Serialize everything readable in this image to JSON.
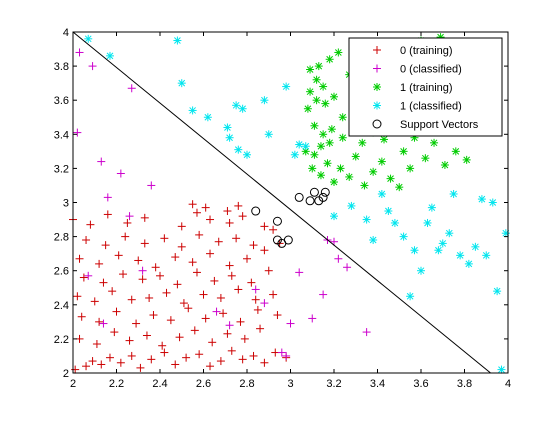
{
  "chart_data": {
    "type": "scatter",
    "title": "",
    "xlabel": "",
    "ylabel": "",
    "xlim": [
      2,
      4
    ],
    "ylim": [
      2,
      4
    ],
    "xticks": [
      "2",
      "2.2",
      "2.4",
      "2.6",
      "2.8",
      "3",
      "3.2",
      "3.4",
      "3.6",
      "3.8",
      "4"
    ],
    "yticks": [
      "2",
      "2.2",
      "2.4",
      "2.6",
      "2.8",
      "3",
      "3.2",
      "3.4",
      "3.6",
      "3.8",
      "4"
    ],
    "grid": false,
    "legend_position": "top-right",
    "boundary": {
      "x": [
        2.0,
        3.92
      ],
      "y": [
        4.0,
        2.0
      ]
    },
    "series": [
      {
        "name": "0 (training)",
        "marker": "+",
        "color": "#cc0000",
        "x": [
          2.01,
          2.06,
          2.09,
          2.13,
          2.17,
          2.22,
          2.27,
          2.31,
          2.36,
          2.42,
          2.47,
          2.52,
          2.58,
          2.63,
          2.68,
          2.73,
          2.78,
          2.83,
          2.88,
          2.93,
          2.98,
          2.03,
          2.11,
          2.19,
          2.26,
          2.34,
          2.41,
          2.49,
          2.56,
          2.64,
          2.71,
          2.79,
          2.86,
          2.04,
          2.12,
          2.2,
          2.29,
          2.37,
          2.45,
          2.53,
          2.61,
          2.69,
          2.77,
          2.85,
          2.94,
          2.02,
          2.1,
          2.18,
          2.27,
          2.35,
          2.43,
          2.51,
          2.6,
          2.68,
          2.76,
          2.84,
          2.92,
          2.05,
          2.14,
          2.23,
          2.32,
          2.4,
          2.48,
          2.57,
          2.65,
          2.73,
          2.82,
          2.9,
          2.03,
          2.12,
          2.21,
          2.3,
          2.38,
          2.47,
          2.55,
          2.63,
          2.72,
          2.8,
          2.88,
          2.06,
          2.15,
          2.24,
          2.33,
          2.42,
          2.5,
          2.58,
          2.67,
          2.75,
          2.83,
          2.0,
          2.08,
          2.16,
          2.25,
          2.33,
          2.5,
          2.57,
          2.63,
          2.72,
          2.78,
          2.88,
          2.55,
          2.61,
          2.71,
          2.76,
          2.92,
          2.95
        ],
        "y": [
          2.02,
          2.04,
          2.07,
          2.05,
          2.09,
          2.06,
          2.1,
          2.03,
          2.08,
          2.12,
          2.05,
          2.09,
          2.11,
          2.04,
          2.07,
          2.13,
          2.08,
          2.1,
          2.06,
          2.12,
          2.09,
          2.2,
          2.17,
          2.24,
          2.19,
          2.22,
          2.16,
          2.21,
          2.25,
          2.18,
          2.23,
          2.2,
          2.26,
          2.33,
          2.3,
          2.36,
          2.29,
          2.34,
          2.31,
          2.38,
          2.32,
          2.35,
          2.3,
          2.37,
          2.34,
          2.45,
          2.42,
          2.48,
          2.43,
          2.44,
          2.47,
          2.41,
          2.46,
          2.44,
          2.49,
          2.43,
          2.46,
          2.56,
          2.53,
          2.58,
          2.55,
          2.57,
          2.52,
          2.59,
          2.54,
          2.57,
          2.53,
          2.6,
          2.67,
          2.64,
          2.69,
          2.66,
          2.62,
          2.68,
          2.65,
          2.7,
          2.63,
          2.67,
          2.72,
          2.78,
          2.75,
          2.8,
          2.76,
          2.79,
          2.74,
          2.81,
          2.77,
          2.79,
          2.75,
          2.9,
          2.87,
          2.93,
          2.88,
          2.91,
          2.86,
          2.94,
          2.9,
          2.88,
          2.92,
          2.86,
          2.99,
          2.97,
          2.95,
          2.98,
          2.84,
          2.76
        ]
      },
      {
        "name": "0 (classified)",
        "marker": "+",
        "color": "#cc00cc",
        "x": [
          2.03,
          2.09,
          2.02,
          2.13,
          2.22,
          2.27,
          2.36,
          2.16,
          2.32,
          2.26,
          2.14,
          2.98,
          2.07,
          3.22,
          3.26,
          3.35,
          3.15,
          3.0,
          2.96,
          3.2,
          3.17,
          3.1,
          3.04,
          2.88,
          2.66,
          2.84,
          2.72
        ],
        "y": [
          3.88,
          3.8,
          3.41,
          3.24,
          3.17,
          3.67,
          3.1,
          3.03,
          2.6,
          2.92,
          2.29,
          2.1,
          2.57,
          2.67,
          2.62,
          2.24,
          2.46,
          2.29,
          2.12,
          2.77,
          2.78,
          2.32,
          2.59,
          2.41,
          2.36,
          2.49,
          2.28
        ]
      },
      {
        "name": "1 (training)",
        "marker": "*",
        "color": "#00cc00",
        "x": [
          3.09,
          3.13,
          3.18,
          3.22,
          3.27,
          3.32,
          3.36,
          3.41,
          3.46,
          3.51,
          3.55,
          3.6,
          3.65,
          3.69,
          3.74,
          3.79,
          3.83,
          3.88,
          3.92,
          3.11,
          3.15,
          3.19,
          3.24,
          3.29,
          3.33,
          3.38,
          3.43,
          3.47,
          3.52,
          3.57,
          3.62,
          3.66,
          3.71,
          3.76,
          3.81,
          3.1,
          3.14,
          3.17,
          3.2,
          3.23,
          3.27,
          3.3,
          3.34,
          3.38,
          3.42,
          3.46,
          3.5,
          3.55,
          3.08,
          3.12,
          3.16,
          3.2,
          3.24,
          3.07,
          3.11,
          3.14,
          3.18,
          3.12,
          3.15,
          3.09
        ],
        "y": [
          3.78,
          3.8,
          3.84,
          3.88,
          3.75,
          3.82,
          3.9,
          3.85,
          3.92,
          3.8,
          3.86,
          3.95,
          3.88,
          3.97,
          3.8,
          3.84,
          3.92,
          3.86,
          3.9,
          3.45,
          3.4,
          3.43,
          3.38,
          3.46,
          3.35,
          3.41,
          3.37,
          3.44,
          3.3,
          3.38,
          3.26,
          3.35,
          3.22,
          3.3,
          3.25,
          3.2,
          3.16,
          3.23,
          3.12,
          3.2,
          3.15,
          3.27,
          3.1,
          3.18,
          3.24,
          3.14,
          3.09,
          3.2,
          3.55,
          3.6,
          3.58,
          3.62,
          3.5,
          3.3,
          3.28,
          3.33,
          3.35,
          3.72,
          3.68,
          3.65
        ]
      },
      {
        "name": "1 (classified)",
        "marker": "*",
        "color": "#00e5ee",
        "x": [
          2.07,
          2.17,
          2.48,
          2.5,
          2.55,
          2.71,
          2.72,
          2.75,
          2.78,
          2.9,
          2.98,
          3.07,
          3.02,
          3.28,
          3.35,
          3.45,
          3.52,
          3.57,
          3.63,
          3.7,
          3.78,
          3.82,
          3.88,
          3.95,
          3.99,
          3.6,
          3.5,
          3.42,
          3.38,
          3.9,
          3.75,
          3.65,
          3.85,
          3.55,
          3.48,
          3.2,
          3.04,
          2.8,
          2.88,
          2.76,
          2.62,
          3.93,
          3.97,
          3.68,
          3.73
        ],
        "y": [
          3.96,
          3.86,
          3.95,
          3.7,
          3.54,
          3.44,
          3.38,
          3.57,
          3.55,
          3.4,
          3.68,
          3.33,
          3.28,
          2.98,
          2.9,
          2.95,
          2.8,
          2.72,
          2.88,
          2.76,
          2.69,
          2.64,
          3.02,
          2.48,
          2.82,
          2.6,
          3.62,
          3.05,
          2.78,
          2.69,
          3.05,
          2.97,
          2.74,
          2.45,
          2.88,
          2.92,
          3.34,
          3.28,
          3.6,
          3.31,
          3.5,
          3.0,
          2.02,
          2.72,
          2.82
        ]
      },
      {
        "name": "Support Vectors",
        "marker": "o",
        "color": "#000000",
        "x": [
          2.84,
          2.94,
          2.94,
          2.96,
          2.99,
          3.04,
          3.09,
          3.11,
          3.13,
          3.16,
          3.15
        ],
        "y": [
          2.95,
          2.89,
          2.78,
          2.76,
          2.78,
          3.03,
          3.01,
          3.06,
          3.01,
          3.06,
          3.03
        ]
      }
    ]
  }
}
